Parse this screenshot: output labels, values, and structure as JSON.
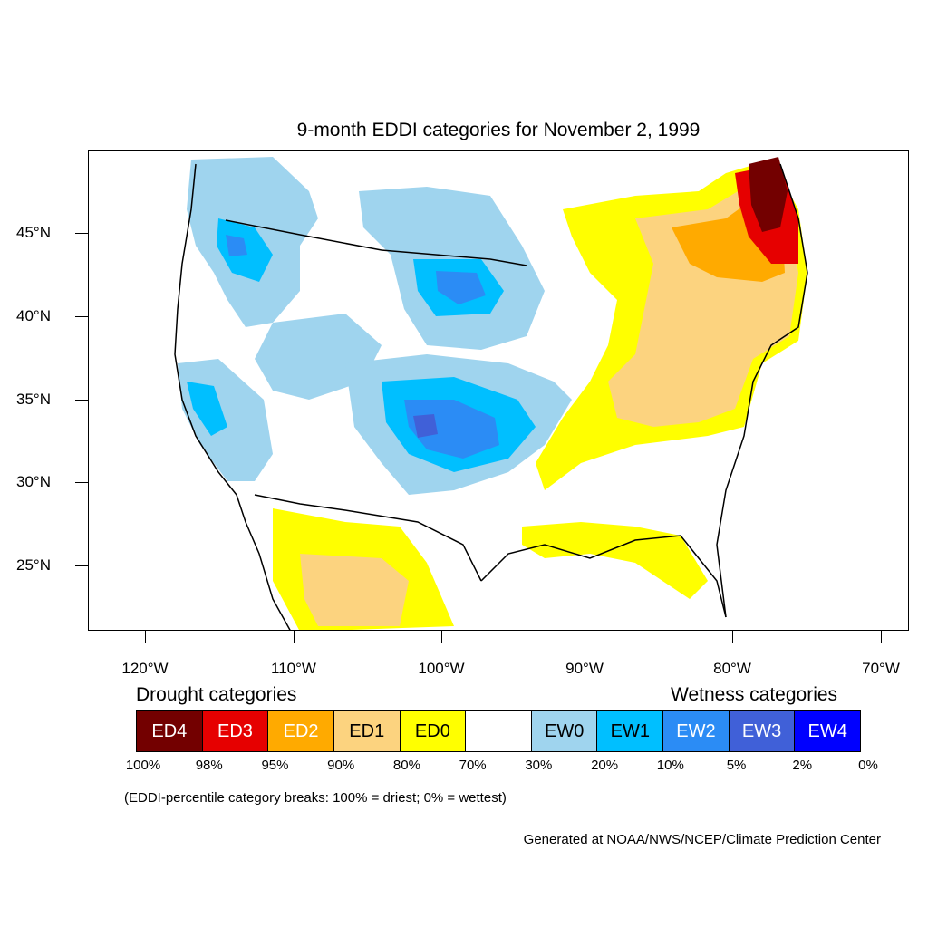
{
  "title": "9-month EDDI categories for November 2, 1999",
  "lat_labels": [
    "45°N",
    "40°N",
    "35°N",
    "30°N",
    "25°N"
  ],
  "lon_labels": [
    "120°W",
    "110°W",
    "100°W",
    "90°W",
    "80°W",
    "70°W"
  ],
  "lat_values": [
    45,
    40,
    35,
    30,
    25
  ],
  "lon_values": [
    -120,
    -110,
    -100,
    -90,
    -80,
    -70
  ],
  "drought_heading": "Drought categories",
  "wetness_heading": "Wetness categories",
  "legend": [
    {
      "label": "ED4",
      "color": "#730000",
      "text_color": "#ffffff"
    },
    {
      "label": "ED3",
      "color": "#e60000",
      "text_color": "#ffffff"
    },
    {
      "label": "ED2",
      "color": "#ffaa00",
      "text_color": "#ffffff"
    },
    {
      "label": "ED1",
      "color": "#fcd37f",
      "text_color": "#000000"
    },
    {
      "label": "ED0",
      "color": "#ffff00",
      "text_color": "#000000"
    },
    {
      "label": "",
      "color": "#ffffff",
      "text_color": "#000000"
    },
    {
      "label": "EW0",
      "color": "#9fd4ee",
      "text_color": "#000000"
    },
    {
      "label": "EW1",
      "color": "#00bfff",
      "text_color": "#000000"
    },
    {
      "label": "EW2",
      "color": "#2b8cf5",
      "text_color": "#ffffff"
    },
    {
      "label": "EW3",
      "color": "#4060d8",
      "text_color": "#ffffff"
    },
    {
      "label": "EW4",
      "color": "#0000ff",
      "text_color": "#ffffff"
    }
  ],
  "breaks": [
    "100%",
    "98%",
    "95%",
    "90%",
    "80%",
    "70%",
    "30%",
    "20%",
    "10%",
    "5%",
    "2%",
    "0%"
  ],
  "note": "(EDDI-percentile category breaks: 100% = driest; 0% = wettest)",
  "credit": "Generated at NOAA/NWS/NCEP/Climate Prediction Center"
}
